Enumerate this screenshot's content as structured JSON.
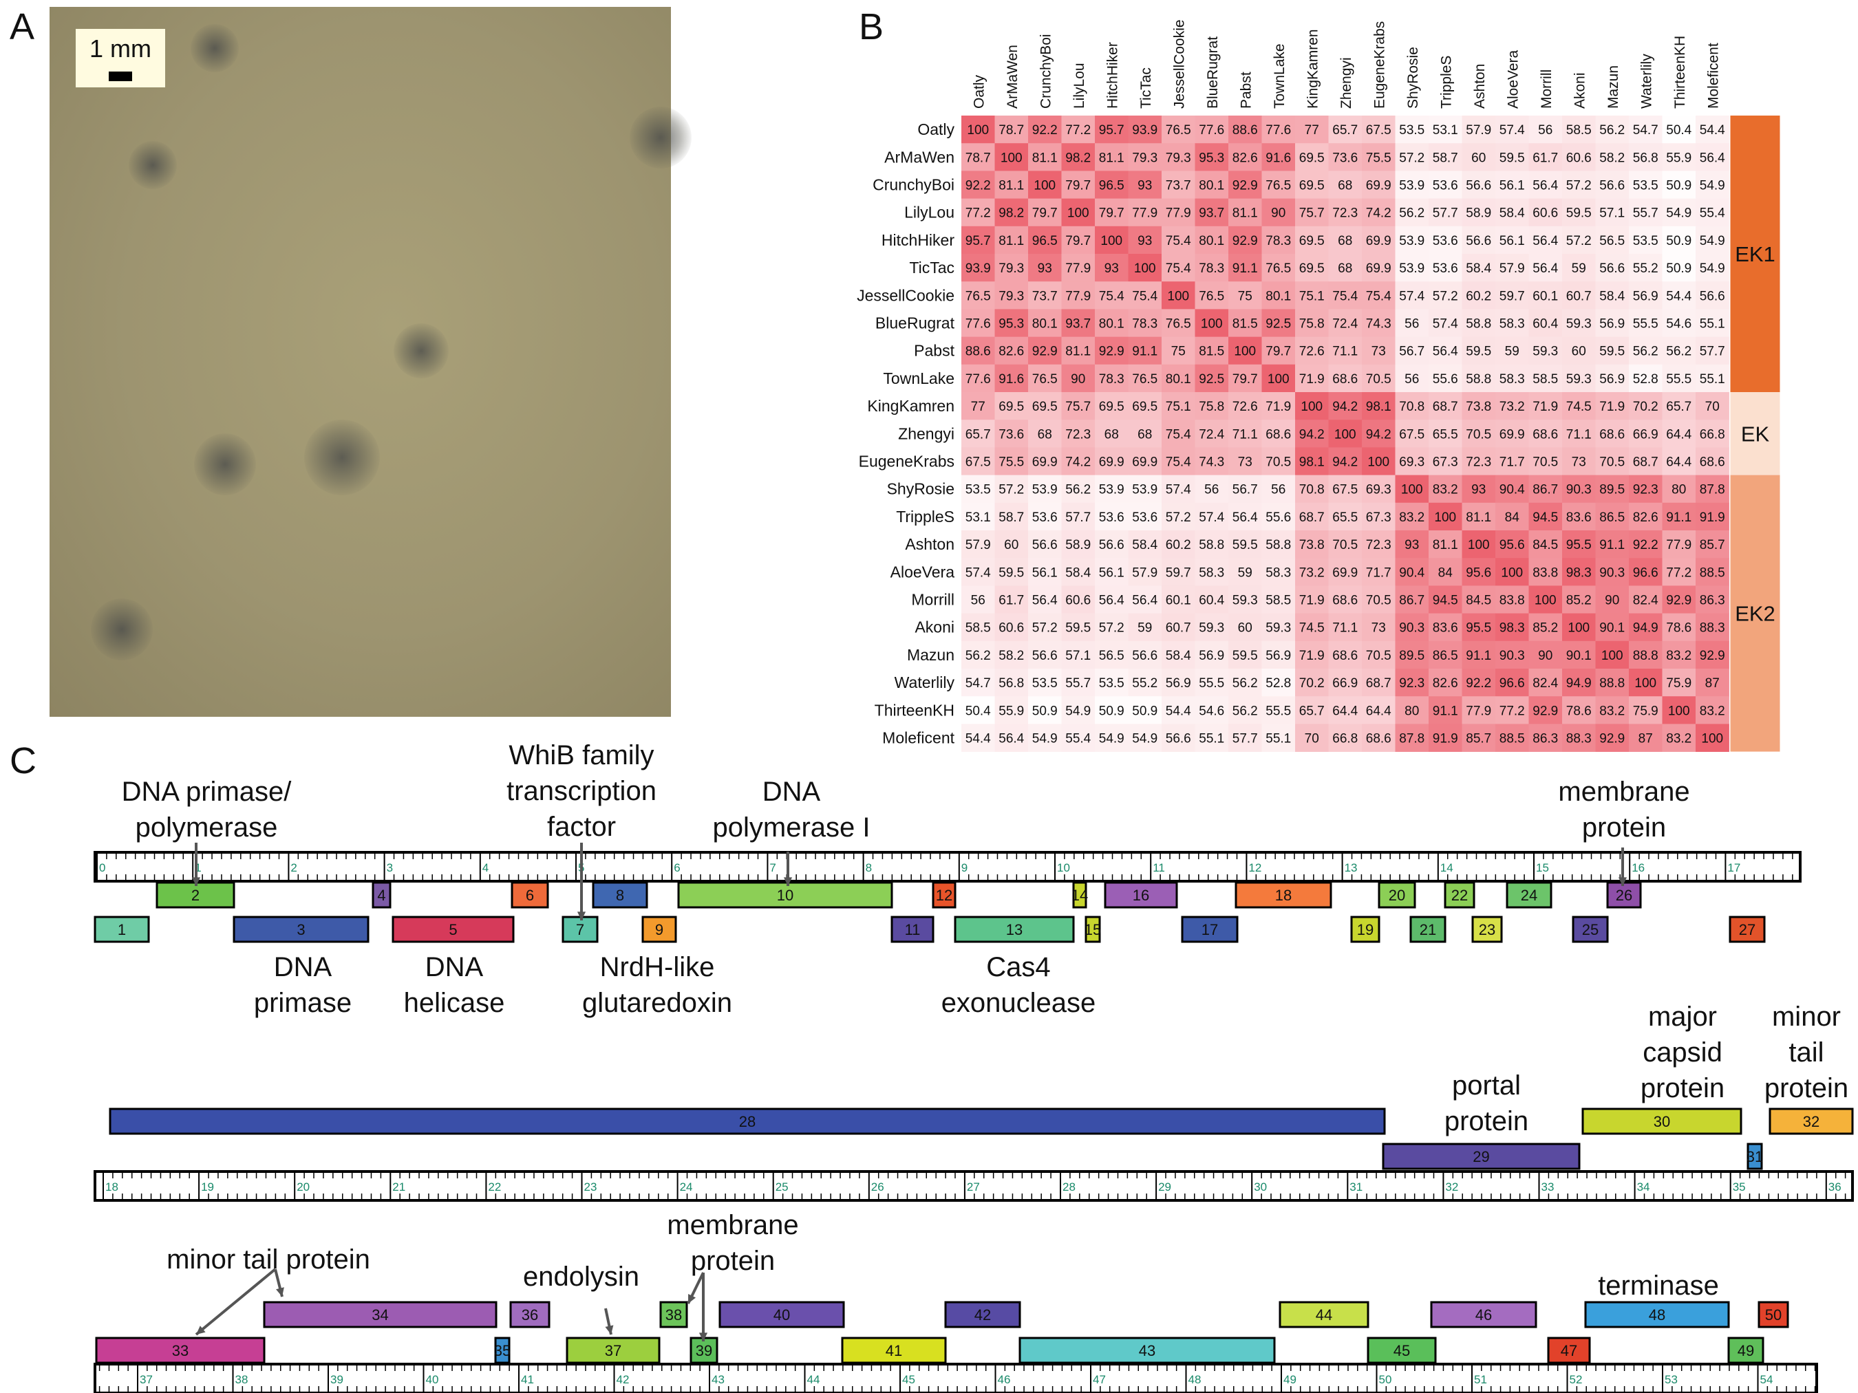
{
  "panels": {
    "a": "A",
    "b": "B",
    "c": "C"
  },
  "photo": {
    "scalebar_label": "1 mm"
  },
  "heatmap": {
    "names": [
      "Oatly",
      "ArMaWen",
      "CrunchyBoi",
      "LilyLou",
      "HitchHiker",
      "TicTac",
      "JessellCookie",
      "BlueRugrat",
      "Pabst",
      "TownLake",
      "KingKamren",
      "Zhengyi",
      "EugeneKrabs",
      "ShyRosie",
      "TrippleS",
      "Ashton",
      "AloeVera",
      "Morrill",
      "Akoni",
      "Mazun",
      "Waterlily",
      "ThirteenKH",
      "Moleficent"
    ],
    "values": [
      [
        "100",
        "78.7",
        "92.2",
        "77.2",
        "95.7",
        "93.9",
        "76.5",
        "77.6",
        "88.6",
        "77.6",
        "77",
        "65.7",
        "67.5",
        "53.5",
        "53.1",
        "57.9",
        "57.4",
        "56",
        "58.5",
        "56.2",
        "54.7",
        "50.4",
        "54.4"
      ],
      [
        "78.7",
        "100",
        "81.1",
        "98.2",
        "81.1",
        "79.3",
        "79.3",
        "95.3",
        "82.6",
        "91.6",
        "69.5",
        "73.6",
        "75.5",
        "57.2",
        "58.7",
        "60",
        "59.5",
        "61.7",
        "60.6",
        "58.2",
        "56.8",
        "55.9",
        "56.4"
      ],
      [
        "92.2",
        "81.1",
        "100",
        "79.7",
        "96.5",
        "93",
        "73.7",
        "80.1",
        "92.9",
        "76.5",
        "69.5",
        "68",
        "69.9",
        "53.9",
        "53.6",
        "56.6",
        "56.1",
        "56.4",
        "57.2",
        "56.6",
        "53.5",
        "50.9",
        "54.9"
      ],
      [
        "77.2",
        "98.2",
        "79.7",
        "100",
        "79.7",
        "77.9",
        "77.9",
        "93.7",
        "81.1",
        "90",
        "75.7",
        "72.3",
        "74.2",
        "56.2",
        "57.7",
        "58.9",
        "58.4",
        "60.6",
        "59.5",
        "57.1",
        "55.7",
        "54.9",
        "55.4"
      ],
      [
        "95.7",
        "81.1",
        "96.5",
        "79.7",
        "100",
        "93",
        "75.4",
        "80.1",
        "92.9",
        "78.3",
        "69.5",
        "68",
        "69.9",
        "53.9",
        "53.6",
        "56.6",
        "56.1",
        "56.4",
        "57.2",
        "56.5",
        "53.5",
        "50.9",
        "54.9"
      ],
      [
        "93.9",
        "79.3",
        "93",
        "77.9",
        "93",
        "100",
        "75.4",
        "78.3",
        "91.1",
        "76.5",
        "69.5",
        "68",
        "69.9",
        "53.9",
        "53.6",
        "58.4",
        "57.9",
        "56.4",
        "59",
        "56.6",
        "55.2",
        "50.9",
        "54.9"
      ],
      [
        "76.5",
        "79.3",
        "73.7",
        "77.9",
        "75.4",
        "75.4",
        "100",
        "76.5",
        "75",
        "80.1",
        "75.1",
        "75.4",
        "75.4",
        "57.4",
        "57.2",
        "60.2",
        "59.7",
        "60.1",
        "60.7",
        "58.4",
        "56.9",
        "54.4",
        "56.6"
      ],
      [
        "77.6",
        "95.3",
        "80.1",
        "93.7",
        "80.1",
        "78.3",
        "76.5",
        "100",
        "81.5",
        "92.5",
        "75.8",
        "72.4",
        "74.3",
        "56",
        "57.4",
        "58.8",
        "58.3",
        "60.4",
        "59.3",
        "56.9",
        "55.5",
        "54.6",
        "55.1"
      ],
      [
        "88.6",
        "82.6",
        "92.9",
        "81.1",
        "92.9",
        "91.1",
        "75",
        "81.5",
        "100",
        "79.7",
        "72.6",
        "71.1",
        "73",
        "56.7",
        "56.4",
        "59.5",
        "59",
        "59.3",
        "60",
        "59.5",
        "56.2",
        "56.2",
        "57.7"
      ],
      [
        "77.6",
        "91.6",
        "76.5",
        "90",
        "78.3",
        "76.5",
        "80.1",
        "92.5",
        "79.7",
        "100",
        "71.9",
        "68.6",
        "70.5",
        "56",
        "55.6",
        "58.8",
        "58.3",
        "58.5",
        "59.3",
        "56.9",
        "52.8",
        "55.5",
        "55.1"
      ],
      [
        "77",
        "69.5",
        "69.5",
        "75.7",
        "69.5",
        "69.5",
        "75.1",
        "75.8",
        "72.6",
        "71.9",
        "100",
        "94.2",
        "98.1",
        "70.8",
        "68.7",
        "73.8",
        "73.2",
        "71.9",
        "74.5",
        "71.9",
        "70.2",
        "65.7",
        "70"
      ],
      [
        "65.7",
        "73.6",
        "68",
        "72.3",
        "68",
        "68",
        "75.4",
        "72.4",
        "71.1",
        "68.6",
        "94.2",
        "100",
        "94.2",
        "67.5",
        "65.5",
        "70.5",
        "69.9",
        "68.6",
        "71.1",
        "68.6",
        "66.9",
        "64.4",
        "66.8"
      ],
      [
        "67.5",
        "75.5",
        "69.9",
        "74.2",
        "69.9",
        "69.9",
        "75.4",
        "74.3",
        "73",
        "70.5",
        "98.1",
        "94.2",
        "100",
        "69.3",
        "67.3",
        "72.3",
        "71.7",
        "70.5",
        "73",
        "70.5",
        "68.7",
        "64.4",
        "68.6"
      ],
      [
        "53.5",
        "57.2",
        "53.9",
        "56.2",
        "53.9",
        "53.9",
        "57.4",
        "56",
        "56.7",
        "56",
        "70.8",
        "67.5",
        "69.3",
        "100",
        "83.2",
        "93",
        "90.4",
        "86.7",
        "90.3",
        "89.5",
        "92.3",
        "80",
        "87.8"
      ],
      [
        "53.1",
        "58.7",
        "53.6",
        "57.7",
        "53.6",
        "53.6",
        "57.2",
        "57.4",
        "56.4",
        "55.6",
        "68.7",
        "65.5",
        "67.3",
        "83.2",
        "100",
        "81.1",
        "84",
        "94.5",
        "83.6",
        "86.5",
        "82.6",
        "91.1",
        "91.9"
      ],
      [
        "57.9",
        "60",
        "56.6",
        "58.9",
        "56.6",
        "58.4",
        "60.2",
        "58.8",
        "59.5",
        "58.8",
        "73.8",
        "70.5",
        "72.3",
        "93",
        "81.1",
        "100",
        "95.6",
        "84.5",
        "95.5",
        "91.1",
        "92.2",
        "77.9",
        "85.7"
      ],
      [
        "57.4",
        "59.5",
        "56.1",
        "58.4",
        "56.1",
        "57.9",
        "59.7",
        "58.3",
        "59",
        "58.3",
        "73.2",
        "69.9",
        "71.7",
        "90.4",
        "84",
        "95.6",
        "100",
        "83.8",
        "98.3",
        "90.3",
        "96.6",
        "77.2",
        "88.5"
      ],
      [
        "56",
        "61.7",
        "56.4",
        "60.6",
        "56.4",
        "56.4",
        "60.1",
        "60.4",
        "59.3",
        "58.5",
        "71.9",
        "68.6",
        "70.5",
        "86.7",
        "94.5",
        "84.5",
        "83.8",
        "100",
        "85.2",
        "90",
        "82.4",
        "92.9",
        "86.3"
      ],
      [
        "58.5",
        "60.6",
        "57.2",
        "59.5",
        "57.2",
        "59",
        "60.7",
        "59.3",
        "60",
        "59.3",
        "74.5",
        "71.1",
        "73",
        "90.3",
        "83.6",
        "95.5",
        "98.3",
        "85.2",
        "100",
        "90.1",
        "94.9",
        "78.6",
        "88.3"
      ],
      [
        "56.2",
        "58.2",
        "56.6",
        "57.1",
        "56.5",
        "56.6",
        "58.4",
        "56.9",
        "59.5",
        "56.9",
        "71.9",
        "68.6",
        "70.5",
        "89.5",
        "86.5",
        "91.1",
        "90.3",
        "90",
        "90.1",
        "100",
        "88.8",
        "83.2",
        "92.9"
      ],
      [
        "54.7",
        "56.8",
        "53.5",
        "55.7",
        "53.5",
        "55.2",
        "56.9",
        "55.5",
        "56.2",
        "52.8",
        "70.2",
        "66.9",
        "68.7",
        "92.3",
        "82.6",
        "92.2",
        "96.6",
        "82.4",
        "94.9",
        "88.8",
        "100",
        "75.9",
        "87"
      ],
      [
        "50.4",
        "55.9",
        "50.9",
        "54.9",
        "50.9",
        "50.9",
        "54.4",
        "54.6",
        "56.2",
        "55.5",
        "65.7",
        "64.4",
        "64.4",
        "80",
        "91.1",
        "77.9",
        "77.2",
        "92.9",
        "78.6",
        "83.2",
        "75.9",
        "100",
        "83.2"
      ],
      [
        "54.4",
        "56.4",
        "54.9",
        "55.4",
        "54.9",
        "54.9",
        "56.6",
        "55.1",
        "57.7",
        "55.1",
        "70",
        "66.8",
        "68.6",
        "87.8",
        "91.9",
        "85.7",
        "88.5",
        "86.3",
        "88.3",
        "92.9",
        "87",
        "83.2",
        "100"
      ]
    ],
    "clusters": [
      {
        "label": "EK1",
        "color": "#e86d2c",
        "start": 0,
        "count": 10
      },
      {
        "label": "EK",
        "color": "#fbe0cf",
        "start": 10,
        "count": 3
      },
      {
        "label": "EK2",
        "color": "#f2a57c",
        "start": 13,
        "count": 10
      }
    ]
  },
  "genome": {
    "row1_ticks": [
      "0",
      "1",
      "2",
      "3",
      "4",
      "5",
      "6",
      "7",
      "8",
      "9",
      "10",
      "11",
      "12",
      "13",
      "14",
      "15",
      "16",
      "17"
    ],
    "row2_ticks": [
      "18",
      "19",
      "20",
      "21",
      "22",
      "23",
      "24",
      "25",
      "26",
      "27",
      "28",
      "29",
      "30",
      "31",
      "32",
      "33",
      "34",
      "35",
      "36"
    ],
    "row3_ticks": [
      "37",
      "38",
      "39",
      "40",
      "41",
      "42",
      "43",
      "44",
      "45",
      "46",
      "47",
      "48",
      "49",
      "50",
      "51",
      "52",
      "53",
      "54"
    ],
    "genes": [
      {
        "n": "1",
        "color": "#6fcca6"
      },
      {
        "n": "2",
        "color": "#6cc24a"
      },
      {
        "n": "3",
        "color": "#3e5aa8"
      },
      {
        "n": "4",
        "color": "#7b5aa6"
      },
      {
        "n": "5",
        "color": "#d63a5a"
      },
      {
        "n": "6",
        "color": "#ef6a3a"
      },
      {
        "n": "7",
        "color": "#5cc4a8"
      },
      {
        "n": "8",
        "color": "#3f67b1"
      },
      {
        "n": "9",
        "color": "#f39a2c"
      },
      {
        "n": "10",
        "color": "#8ccf56"
      },
      {
        "n": "11",
        "color": "#5a4ba0"
      },
      {
        "n": "12",
        "color": "#e8542a"
      },
      {
        "n": "13",
        "color": "#5dc48c"
      },
      {
        "n": "14",
        "color": "#c8d62e"
      },
      {
        "n": "15",
        "color": "#c8d62e"
      },
      {
        "n": "16",
        "color": "#9b5fb5"
      },
      {
        "n": "17",
        "color": "#3e5aa8"
      },
      {
        "n": "18",
        "color": "#f47a3c"
      },
      {
        "n": "19",
        "color": "#c8d62e"
      },
      {
        "n": "20",
        "color": "#8ccf56"
      },
      {
        "n": "21",
        "color": "#5dbb6b"
      },
      {
        "n": "22",
        "color": "#8ccf56"
      },
      {
        "n": "23",
        "color": "#d8e048"
      },
      {
        "n": "24",
        "color": "#6cc46a"
      },
      {
        "n": "25",
        "color": "#5a4ba0"
      },
      {
        "n": "26",
        "color": "#8e4fa8"
      },
      {
        "n": "27",
        "color": "#e2532a"
      },
      {
        "n": "28",
        "color": "#3a4fa8"
      },
      {
        "n": "29",
        "color": "#5a4ba0"
      },
      {
        "n": "30",
        "color": "#c8d62e"
      },
      {
        "n": "31",
        "color": "#3a8fd0"
      },
      {
        "n": "32",
        "color": "#f5b23a"
      },
      {
        "n": "33",
        "color": "#c63f94"
      },
      {
        "n": "34",
        "color": "#9c5cb2"
      },
      {
        "n": "35",
        "color": "#3a8fd0"
      },
      {
        "n": "36",
        "color": "#a06cbf"
      },
      {
        "n": "37",
        "color": "#9ccf3e"
      },
      {
        "n": "38",
        "color": "#6cc45a"
      },
      {
        "n": "39",
        "color": "#5cbf5a"
      },
      {
        "n": "40",
        "color": "#6a50ac"
      },
      {
        "n": "41",
        "color": "#d8e020"
      },
      {
        "n": "42",
        "color": "#574ba4"
      },
      {
        "n": "43",
        "color": "#5fc9c9"
      },
      {
        "n": "44",
        "color": "#c8e04a"
      },
      {
        "n": "45",
        "color": "#5abf5a"
      },
      {
        "n": "46",
        "color": "#a46cc0"
      },
      {
        "n": "47",
        "color": "#e2422a"
      },
      {
        "n": "48",
        "color": "#3aa0dc"
      },
      {
        "n": "49",
        "color": "#5fbf5a"
      },
      {
        "n": "50",
        "color": "#e2422a"
      }
    ],
    "annotations": [
      "DNA primase/\npolymerase",
      "WhiB family\ntranscription\nfactor",
      "DNA\npolymerase I",
      "membrane\nprotein",
      "DNA\nprimase",
      "DNA\nhelicase",
      "NrdH-like\nglutaredoxin",
      "Cas4\nexonuclease",
      "portal\nprotein",
      "major\ncapsid\nprotein",
      "minor\ntail\nprotein",
      "minor tail protein",
      "endolysin",
      "membrane\nprotein",
      "terminase"
    ]
  }
}
